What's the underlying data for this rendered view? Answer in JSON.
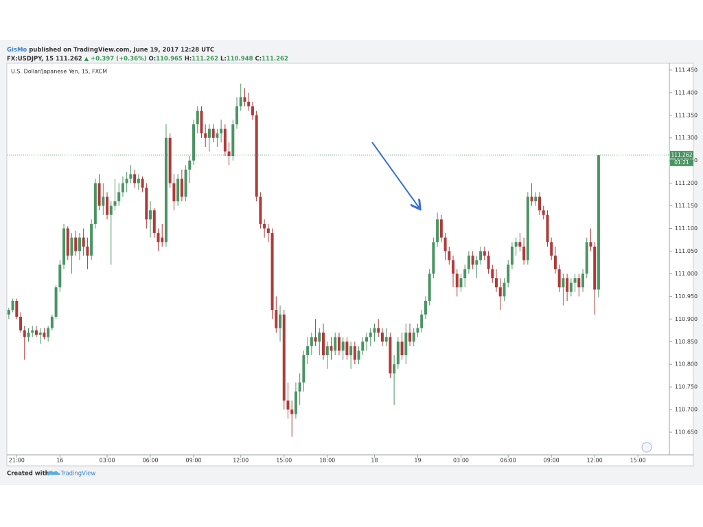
{
  "header": {
    "author": "GisMo",
    "published": "published on TradingView.com, June 19, 2017 12:28 UTC",
    "symbol": "FX:USDJPY, 15",
    "change": "▲ +0.397 (+0.36%)",
    "open_label": "O:",
    "high_label": "H:",
    "low_label": "L:",
    "close_label": "C:"
  },
  "footer": {
    "created_with": "Created with",
    "brand": "TradingView"
  },
  "chart_data": {
    "type": "candlestick",
    "title": "U.S. Dollar/Japanese Yen, 15, FXCM",
    "countdown": "01:21",
    "up_color": "#4a9463",
    "down_color": "#b03a3a",
    "ylim": [
      110.6,
      111.465
    ],
    "yticks": [
      {
        "value": 110.65,
        "label": "110.650"
      },
      {
        "value": 110.7,
        "label": "110.700"
      },
      {
        "value": 110.75,
        "label": "110.750"
      },
      {
        "value": 110.8,
        "label": "110.800"
      },
      {
        "value": 110.85,
        "label": "110.850"
      },
      {
        "value": 110.9,
        "label": "110.900"
      },
      {
        "value": 110.95,
        "label": "110.950"
      },
      {
        "value": 111.0,
        "label": "111.000"
      },
      {
        "value": 111.05,
        "label": "111.050"
      },
      {
        "value": 111.1,
        "label": "111.100"
      },
      {
        "value": 111.15,
        "label": "111.150"
      },
      {
        "value": 111.2,
        "label": "111.200"
      },
      {
        "value": 111.25,
        "label": "111.250"
      },
      {
        "value": 111.3,
        "label": "111.300"
      },
      {
        "value": 111.35,
        "label": "111.350"
      },
      {
        "value": 111.4,
        "label": "111.400"
      },
      {
        "value": 111.45,
        "label": "111.450"
      }
    ],
    "xlim": [
      -0.5,
      168
    ],
    "xticks": [
      {
        "value": 2,
        "label": "21:00"
      },
      {
        "value": 13,
        "label": "16"
      },
      {
        "value": 25,
        "label": "03:00"
      },
      {
        "value": 36,
        "label": "06:00"
      },
      {
        "value": 47,
        "label": "09:00"
      },
      {
        "value": 59,
        "label": "12:00"
      },
      {
        "value": 70,
        "label": "15:00"
      },
      {
        "value": 81,
        "label": "18:00"
      },
      {
        "value": 93,
        "label": "18"
      },
      {
        "value": 104,
        "label": "19"
      },
      {
        "value": 115,
        "label": "03:00"
      },
      {
        "value": 127,
        "label": "06:00"
      },
      {
        "value": 138,
        "label": "09:00"
      },
      {
        "value": 149,
        "label": "12:00"
      },
      {
        "value": 160,
        "label": "15:00"
      }
    ],
    "ohlc": [
      [
        110.91,
        110.925,
        110.9,
        110.92
      ],
      [
        110.92,
        110.945,
        110.915,
        110.94
      ],
      [
        110.94,
        110.945,
        110.9,
        110.905
      ],
      [
        110.905,
        110.915,
        110.87,
        110.875
      ],
      [
        110.875,
        110.885,
        110.81,
        110.86
      ],
      [
        110.86,
        110.88,
        110.85,
        110.87
      ],
      [
        110.87,
        110.885,
        110.86,
        110.875
      ],
      [
        110.875,
        110.885,
        110.86,
        110.865
      ],
      [
        110.865,
        110.88,
        110.845,
        110.87
      ],
      [
        110.87,
        110.88,
        110.855,
        110.86
      ],
      [
        110.86,
        110.885,
        110.85,
        110.88
      ],
      [
        110.88,
        110.91,
        110.875,
        110.905
      ],
      [
        110.905,
        110.975,
        110.9,
        110.97
      ],
      [
        110.97,
        111.03,
        110.96,
        111.02
      ],
      [
        111.02,
        111.11,
        111.01,
        111.1
      ],
      [
        111.1,
        111.105,
        111.03,
        111.04
      ],
      [
        111.04,
        111.09,
        111.0,
        111.08
      ],
      [
        111.08,
        111.095,
        111.04,
        111.05
      ],
      [
        111.05,
        111.09,
        111.03,
        111.08
      ],
      [
        111.08,
        111.1,
        111.04,
        111.06
      ],
      [
        111.06,
        111.08,
        111.01,
        111.04
      ],
      [
        111.04,
        111.12,
        111.03,
        111.11
      ],
      [
        111.11,
        111.21,
        111.1,
        111.2
      ],
      [
        111.2,
        111.22,
        111.14,
        111.15
      ],
      [
        111.15,
        111.2,
        111.13,
        111.17
      ],
      [
        111.17,
        111.18,
        111.12,
        111.13
      ],
      [
        111.13,
        111.16,
        111.02,
        111.15
      ],
      [
        111.15,
        111.21,
        111.14,
        111.16
      ],
      [
        111.16,
        111.2,
        111.15,
        111.18
      ],
      [
        111.18,
        111.215,
        111.17,
        111.2
      ],
      [
        111.2,
        111.225,
        111.18,
        111.21
      ],
      [
        111.21,
        111.24,
        111.2,
        111.22
      ],
      [
        111.22,
        111.23,
        111.19,
        111.2
      ],
      [
        111.2,
        111.22,
        111.185,
        111.21
      ],
      [
        111.21,
        111.215,
        111.18,
        111.19
      ],
      [
        111.19,
        111.2,
        111.1,
        111.12
      ],
      [
        111.12,
        111.16,
        111.08,
        111.14
      ],
      [
        111.14,
        111.145,
        111.08,
        111.09
      ],
      [
        111.09,
        111.1,
        111.05,
        111.07
      ],
      [
        111.08,
        111.11,
        111.06,
        111.07
      ],
      [
        111.07,
        111.33,
        111.06,
        111.3
      ],
      [
        111.3,
        111.31,
        111.19,
        111.2
      ],
      [
        111.2,
        111.22,
        111.14,
        111.16
      ],
      [
        111.16,
        111.22,
        111.15,
        111.21
      ],
      [
        111.21,
        111.23,
        111.16,
        111.17
      ],
      [
        111.17,
        111.24,
        111.16,
        111.23
      ],
      [
        111.23,
        111.26,
        111.2,
        111.25
      ],
      [
        111.25,
        111.34,
        111.24,
        111.33
      ],
      [
        111.33,
        111.37,
        111.31,
        111.36
      ],
      [
        111.36,
        111.37,
        111.3,
        111.31
      ],
      [
        111.31,
        111.33,
        111.28,
        111.3
      ],
      [
        111.3,
        111.33,
        111.27,
        111.32
      ],
      [
        111.32,
        111.33,
        111.29,
        111.3
      ],
      [
        111.3,
        111.32,
        111.28,
        111.31
      ],
      [
        111.31,
        111.34,
        111.29,
        111.32
      ],
      [
        111.32,
        111.33,
        111.26,
        111.27
      ],
      [
        111.27,
        111.29,
        111.24,
        111.26
      ],
      [
        111.26,
        111.34,
        111.25,
        111.33
      ],
      [
        111.33,
        111.39,
        111.32,
        111.37
      ],
      [
        111.37,
        111.42,
        111.36,
        111.39
      ],
      [
        111.39,
        111.41,
        111.37,
        111.38
      ],
      [
        111.38,
        111.4,
        111.36,
        111.37
      ],
      [
        111.37,
        111.38,
        111.34,
        111.35
      ],
      [
        111.35,
        111.36,
        111.16,
        111.17
      ],
      [
        111.17,
        111.18,
        111.1,
        111.11
      ],
      [
        111.11,
        111.12,
        111.08,
        111.1
      ],
      [
        111.1,
        111.11,
        111.07,
        111.09
      ],
      [
        111.09,
        111.1,
        110.9,
        110.92
      ],
      [
        110.92,
        110.95,
        110.87,
        110.88
      ],
      [
        110.88,
        110.93,
        110.85,
        110.91
      ],
      [
        110.91,
        110.92,
        110.7,
        110.72
      ],
      [
        110.72,
        110.76,
        110.68,
        110.7
      ],
      [
        110.7,
        110.72,
        110.64,
        110.69
      ],
      [
        110.69,
        110.76,
        110.68,
        110.74
      ],
      [
        110.74,
        110.78,
        110.71,
        110.76
      ],
      [
        110.76,
        110.83,
        110.74,
        110.82
      ],
      [
        110.82,
        110.86,
        110.8,
        110.84
      ],
      [
        110.84,
        110.87,
        110.82,
        110.86
      ],
      [
        110.86,
        110.9,
        110.84,
        110.85
      ],
      [
        110.85,
        110.88,
        110.82,
        110.87
      ],
      [
        110.87,
        110.89,
        110.81,
        110.82
      ],
      [
        110.82,
        110.85,
        110.79,
        110.84
      ],
      [
        110.84,
        110.86,
        110.81,
        110.83
      ],
      [
        110.83,
        110.87,
        110.82,
        110.86
      ],
      [
        110.86,
        110.87,
        110.82,
        110.83
      ],
      [
        110.83,
        110.86,
        110.81,
        110.85
      ],
      [
        110.85,
        110.86,
        110.81,
        110.82
      ],
      [
        110.82,
        110.85,
        110.79,
        110.84
      ],
      [
        110.84,
        110.85,
        110.8,
        110.81
      ],
      [
        110.81,
        110.84,
        110.8,
        110.83
      ],
      [
        110.83,
        110.86,
        110.82,
        110.85
      ],
      [
        110.85,
        110.87,
        110.83,
        110.86
      ],
      [
        110.86,
        110.88,
        110.84,
        110.87
      ],
      [
        110.87,
        110.89,
        110.85,
        110.88
      ],
      [
        110.88,
        110.9,
        110.86,
        110.87
      ],
      [
        110.87,
        110.88,
        110.84,
        110.85
      ],
      [
        110.85,
        110.88,
        110.84,
        110.86
      ],
      [
        110.86,
        110.87,
        110.77,
        110.78
      ],
      [
        110.78,
        110.82,
        110.71,
        110.8
      ],
      [
        110.8,
        110.86,
        110.79,
        110.85
      ],
      [
        110.85,
        110.87,
        110.81,
        110.82
      ],
      [
        110.82,
        110.89,
        110.8,
        110.87
      ],
      [
        110.87,
        110.89,
        110.84,
        110.85
      ],
      [
        110.85,
        110.88,
        110.84,
        110.87
      ],
      [
        110.87,
        110.89,
        110.86,
        110.88
      ],
      [
        110.88,
        110.92,
        110.87,
        110.91
      ],
      [
        110.91,
        110.95,
        110.9,
        110.94
      ],
      [
        110.94,
        111.01,
        110.93,
        111.0
      ],
      [
        111.0,
        111.08,
        110.99,
        111.07
      ],
      [
        111.07,
        111.135,
        111.06,
        111.12
      ],
      [
        111.12,
        111.13,
        111.07,
        111.08
      ],
      [
        111.08,
        111.09,
        111.03,
        111.05
      ],
      [
        111.05,
        111.06,
        111.02,
        111.03
      ],
      [
        111.03,
        111.04,
        110.97,
        111.0
      ],
      [
        111.0,
        111.01,
        110.95,
        110.97
      ],
      [
        110.97,
        111.0,
        110.96,
        110.99
      ],
      [
        110.99,
        111.02,
        110.97,
        111.01
      ],
      [
        111.01,
        111.05,
        111.0,
        111.04
      ],
      [
        111.04,
        111.05,
        111.01,
        111.02
      ],
      [
        111.02,
        111.04,
        110.99,
        111.03
      ],
      [
        111.03,
        111.06,
        111.02,
        111.05
      ],
      [
        111.05,
        111.06,
        111.03,
        111.04
      ],
      [
        111.04,
        111.05,
        111.0,
        111.01
      ],
      [
        111.01,
        111.02,
        110.98,
        110.99
      ],
      [
        110.99,
        111.01,
        110.96,
        110.97
      ],
      [
        110.97,
        110.99,
        110.92,
        110.95
      ],
      [
        110.95,
        110.99,
        110.94,
        110.98
      ],
      [
        110.98,
        111.03,
        110.97,
        111.02
      ],
      [
        111.02,
        111.07,
        111.01,
        111.06
      ],
      [
        111.06,
        111.08,
        111.04,
        111.07
      ],
      [
        111.07,
        111.09,
        111.05,
        111.06
      ],
      [
        111.06,
        111.08,
        111.02,
        111.03
      ],
      [
        111.03,
        111.18,
        111.02,
        111.17
      ],
      [
        111.17,
        111.2,
        111.15,
        111.16
      ],
      [
        111.16,
        111.18,
        111.15,
        111.17
      ],
      [
        111.17,
        111.18,
        111.13,
        111.14
      ],
      [
        111.14,
        111.15,
        111.12,
        111.13
      ],
      [
        111.13,
        111.14,
        111.06,
        111.07
      ],
      [
        111.07,
        111.08,
        111.03,
        111.04
      ],
      [
        111.04,
        111.06,
        111.0,
        111.01
      ],
      [
        111.01,
        111.02,
        110.96,
        110.97
      ],
      [
        110.97,
        111.0,
        110.93,
        110.99
      ],
      [
        110.99,
        111.0,
        110.94,
        110.96
      ],
      [
        110.96,
        110.99,
        110.95,
        110.98
      ],
      [
        110.98,
        111.0,
        110.96,
        110.99
      ],
      [
        110.99,
        111.0,
        110.95,
        110.97
      ],
      [
        110.97,
        111.01,
        110.96,
        111.0
      ],
      [
        111.0,
        111.08,
        110.99,
        111.07
      ],
      [
        111.07,
        111.1,
        111.05,
        111.06
      ],
      [
        111.06,
        111.07,
        110.91,
        110.965
      ],
      [
        110.965,
        111.262,
        110.948,
        111.262
      ]
    ]
  }
}
